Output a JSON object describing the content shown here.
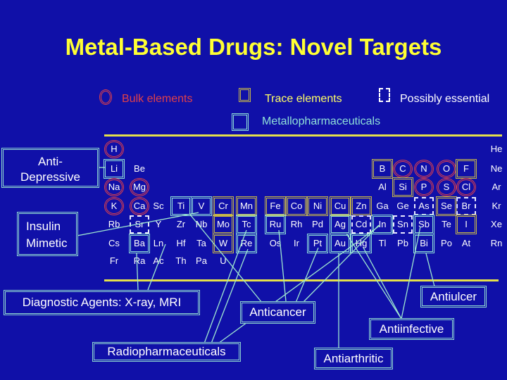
{
  "title": "Metal-Based Drugs: Novel Targets",
  "legend": {
    "bulk": {
      "label": "Bulk elements",
      "color": "#e0404a"
    },
    "trace": {
      "label": "Trace elements",
      "color": "#ffff66"
    },
    "possible": {
      "label": "Possibly essential",
      "color": "#ffffff"
    },
    "pharma": {
      "label": "Metallopharmaceuticals",
      "color": "#8fe0d8"
    }
  },
  "table": {
    "rows": [
      [
        [
          "H",
          "bulk"
        ],
        null,
        null,
        null,
        null,
        null,
        null,
        null,
        null,
        null,
        null,
        null,
        null,
        null,
        null,
        null,
        null,
        [
          "He",
          ""
        ]
      ],
      [
        [
          "Li",
          "pharma"
        ],
        [
          "Be",
          ""
        ],
        null,
        null,
        null,
        null,
        null,
        null,
        null,
        null,
        null,
        null,
        [
          "B",
          "trace"
        ],
        [
          "C",
          "bulk"
        ],
        [
          "N",
          "bulk"
        ],
        [
          "O",
          "bulk"
        ],
        [
          "F",
          "trace"
        ],
        [
          "Ne",
          ""
        ]
      ],
      [
        [
          "Na",
          "bulk"
        ],
        [
          "Mg",
          "bulk"
        ],
        null,
        null,
        null,
        null,
        null,
        null,
        null,
        null,
        null,
        null,
        [
          "Al",
          ""
        ],
        [
          "Si",
          "trace"
        ],
        [
          "P",
          "bulk"
        ],
        [
          "S",
          "bulk"
        ],
        [
          "Cl",
          "bulk"
        ],
        [
          "Ar",
          ""
        ]
      ],
      [
        [
          "K",
          "bulk"
        ],
        [
          "Ca",
          "bulk"
        ],
        [
          "Sc",
          ""
        ],
        [
          "Ti",
          "pharma"
        ],
        [
          "V",
          "pharma"
        ],
        [
          "Cr",
          "trace"
        ],
        [
          "Mn",
          "trace"
        ],
        [
          "Fe",
          "trace"
        ],
        [
          "Co",
          "trace"
        ],
        [
          "Ni",
          "trace"
        ],
        [
          "Cu",
          "trace"
        ],
        [
          "Zn",
          "trace"
        ],
        [
          "Ga",
          ""
        ],
        [
          "Ge",
          ""
        ],
        [
          "As",
          "possible"
        ],
        [
          "Se",
          "trace"
        ],
        [
          "Br",
          "possible"
        ],
        [
          "Kr",
          ""
        ]
      ],
      [
        [
          "Rb",
          ""
        ],
        [
          "Sr",
          "possible"
        ],
        [
          "Y",
          ""
        ],
        [
          "Zr",
          ""
        ],
        [
          "Nb",
          ""
        ],
        [
          "Mo",
          "trace"
        ],
        [
          "Tc",
          "pharma"
        ],
        [
          "Ru",
          "pharma"
        ],
        [
          "Rh",
          ""
        ],
        [
          "Pd",
          ""
        ],
        [
          "Ag",
          "pharma"
        ],
        [
          "Cd",
          "possible"
        ],
        [
          "In",
          "pharma"
        ],
        [
          "Sn",
          "possible"
        ],
        [
          "Sb",
          "pharma"
        ],
        [
          "Te",
          ""
        ],
        [
          "I",
          "trace"
        ],
        [
          "Xe",
          ""
        ]
      ],
      [
        [
          "Cs",
          ""
        ],
        [
          "Ba",
          "pharma"
        ],
        [
          "Ln",
          ""
        ],
        [
          "Hf",
          ""
        ],
        [
          "Ta",
          ""
        ],
        [
          "W",
          "trace"
        ],
        [
          "Re",
          "pharma"
        ],
        [
          "Os",
          ""
        ],
        [
          "Ir",
          ""
        ],
        [
          "Pt",
          "pharma"
        ],
        [
          "Au",
          "pharma"
        ],
        [
          "Hg",
          "pharma"
        ],
        [
          "Tl",
          ""
        ],
        [
          "Pb",
          ""
        ],
        [
          "Bi",
          "pharma"
        ],
        [
          "Po",
          ""
        ],
        [
          "At",
          ""
        ],
        [
          "Rn",
          ""
        ]
      ],
      [
        [
          "Fr",
          ""
        ],
        [
          "Ra",
          ""
        ],
        [
          "Ac",
          ""
        ],
        [
          "Th",
          ""
        ],
        [
          "Pa",
          ""
        ],
        [
          "U",
          ""
        ]
      ]
    ]
  },
  "labels": {
    "antidepressive_1": "Anti-",
    "antidepressive_2": "Depressive",
    "insulin_1": "Insulin",
    "insulin_2": "Mimetic",
    "diagnostic": "Diagnostic Agents: X-ray, MRI",
    "anticancer": "Anticancer",
    "radiopharm": "Radiopharmaceuticals",
    "antiarthritic": "Antiarthritic",
    "antiinfective": "Antiinfective",
    "antiulcer": "Antiulcer"
  }
}
